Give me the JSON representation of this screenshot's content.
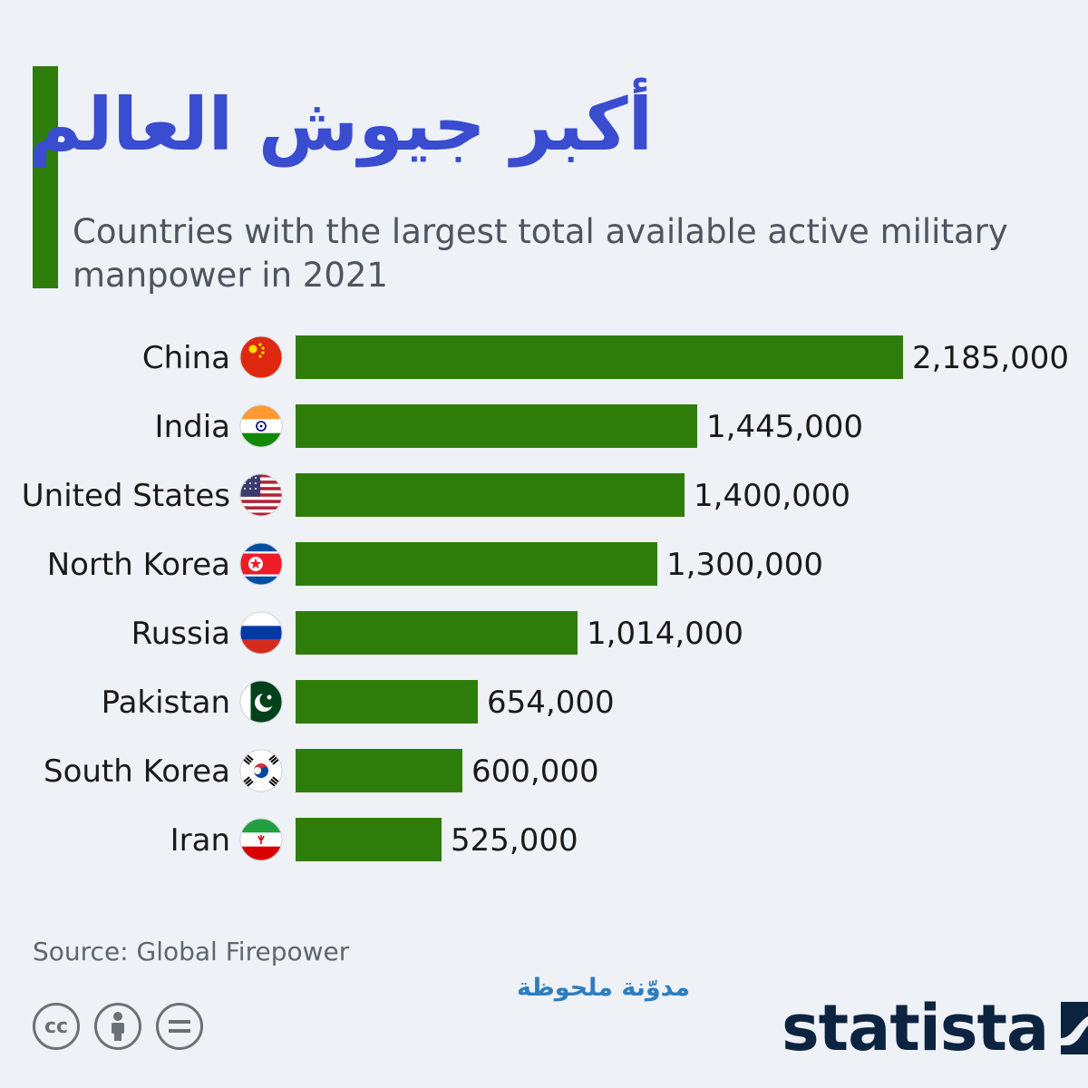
{
  "title": "أكبر جيوش العالم",
  "subtitle": "Countries with the largest total available active military manpower in 2021",
  "source": "Source: Global Firepower",
  "watermark": "مدوّنة ملحوظة",
  "brand": "statista",
  "license_icons": [
    "cc-icon",
    "attribution-icon",
    "no-derivatives-icon"
  ],
  "colors": {
    "bar": "#2e7d0a",
    "title": "#3a4ccf",
    "accent": "#2e7d0a",
    "text": "#1a1a1a"
  },
  "chart_data": {
    "type": "bar",
    "orientation": "horizontal",
    "categories": [
      "China",
      "India",
      "United States",
      "North Korea",
      "Russia",
      "Pakistan",
      "South Korea",
      "Iran"
    ],
    "values": [
      2185000,
      1445000,
      1400000,
      1300000,
      1014000,
      654000,
      600000,
      525000
    ],
    "value_labels": [
      "2,185,000",
      "1,445,000",
      "1,400,000",
      "1,300,000",
      "1,014,000",
      "654,000",
      "600,000",
      "525,000"
    ],
    "flags": [
      "china-flag-icon",
      "india-flag-icon",
      "united-states-flag-icon",
      "north-korea-flag-icon",
      "russia-flag-icon",
      "pakistan-flag-icon",
      "south-korea-flag-icon",
      "iran-flag-icon"
    ],
    "xlim": [
      0,
      2185000
    ],
    "grid": false,
    "legend": "none"
  }
}
